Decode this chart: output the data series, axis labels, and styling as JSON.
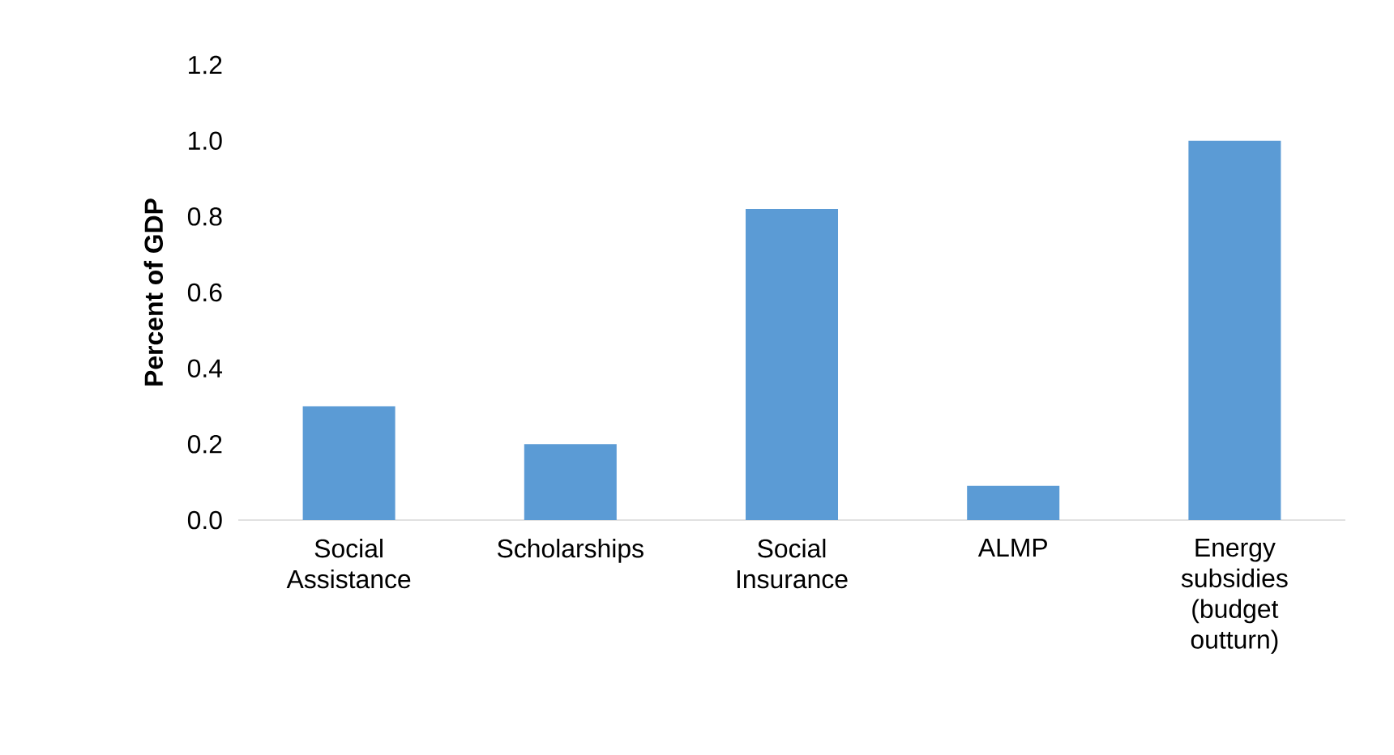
{
  "chart_data": {
    "type": "bar",
    "ylabel": "Percent of GDP",
    "categories": [
      "Social Assistance",
      "Scholarships",
      "Social Insurance",
      "ALMP",
      "Energy subsidies (budget outturn)"
    ],
    "values": [
      0.3,
      0.2,
      0.82,
      0.09,
      1.0
    ],
    "color": "#5b9bd5",
    "ylim": [
      0,
      1.2
    ],
    "yticks": [
      {
        "value": 0,
        "label": "0.0"
      },
      {
        "value": 0.2,
        "label": "0.2"
      },
      {
        "value": 0.4,
        "label": "0.4"
      },
      {
        "value": 0.6,
        "label": "0.6"
      },
      {
        "value": 0.8,
        "label": "0.8"
      },
      {
        "value": 1.0,
        "label": "1.0"
      },
      {
        "value": 1.2,
        "label": "1.2"
      }
    ],
    "grid": false
  }
}
